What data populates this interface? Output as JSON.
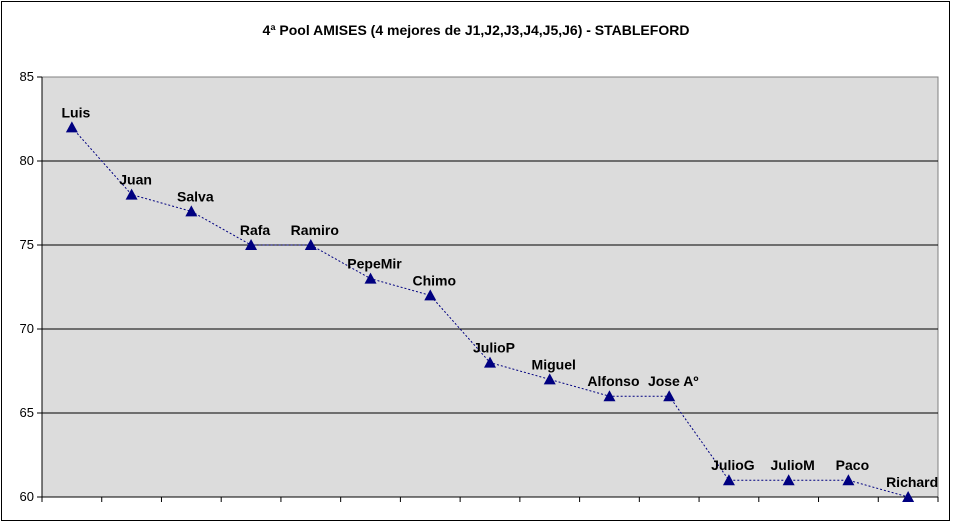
{
  "chart_data": {
    "type": "line",
    "title": "4ª Pool AMISES (4 mejores de J1,J2,J3,J4,J5,J6) - STABLEFORD",
    "xlabel": "",
    "ylabel": "",
    "ylim": [
      60,
      85
    ],
    "yticks": [
      "60",
      "65",
      "70",
      "75",
      "80",
      "85"
    ],
    "grid": true,
    "legend": "none",
    "categories": [
      "Luis",
      "Juan",
      "Salva",
      "Rafa",
      "Ramiro",
      "PepeMir",
      "Chimo",
      "JulioP",
      "Miguel",
      "Alfonso",
      "Jose Aº",
      "JulioG",
      "JulioM",
      "Paco",
      "Richard"
    ],
    "series": [
      {
        "values": [
          82,
          78,
          77,
          75,
          75,
          73,
          72,
          68,
          67,
          66,
          66,
          61,
          61,
          61,
          60
        ]
      }
    ],
    "colors": {
      "plot_bg": "#dcdcdc",
      "marker": "#000080",
      "line": "#000080",
      "grid": "#000000"
    }
  }
}
